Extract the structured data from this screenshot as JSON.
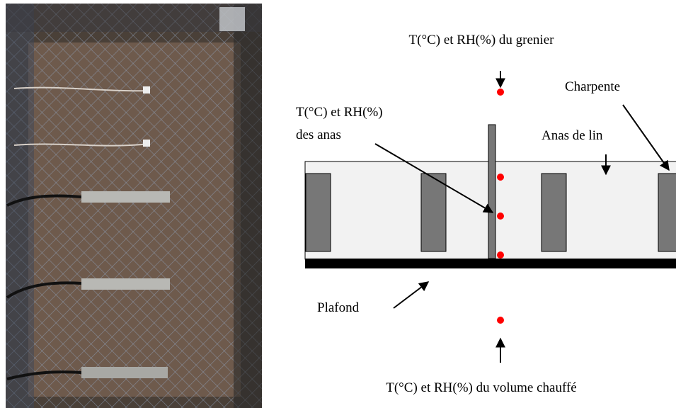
{
  "labels": {
    "attic": "T(°C) et RH(%) du grenier",
    "frame": "Charpente",
    "insulation_sensor_line1": "T(°C) et RH(%)",
    "insulation_sensor_line2": "des anas",
    "insulation": "Anas de lin",
    "ceiling": "Plafond",
    "heated": "T(°C) et RH(%) du volume chauffé"
  }
}
